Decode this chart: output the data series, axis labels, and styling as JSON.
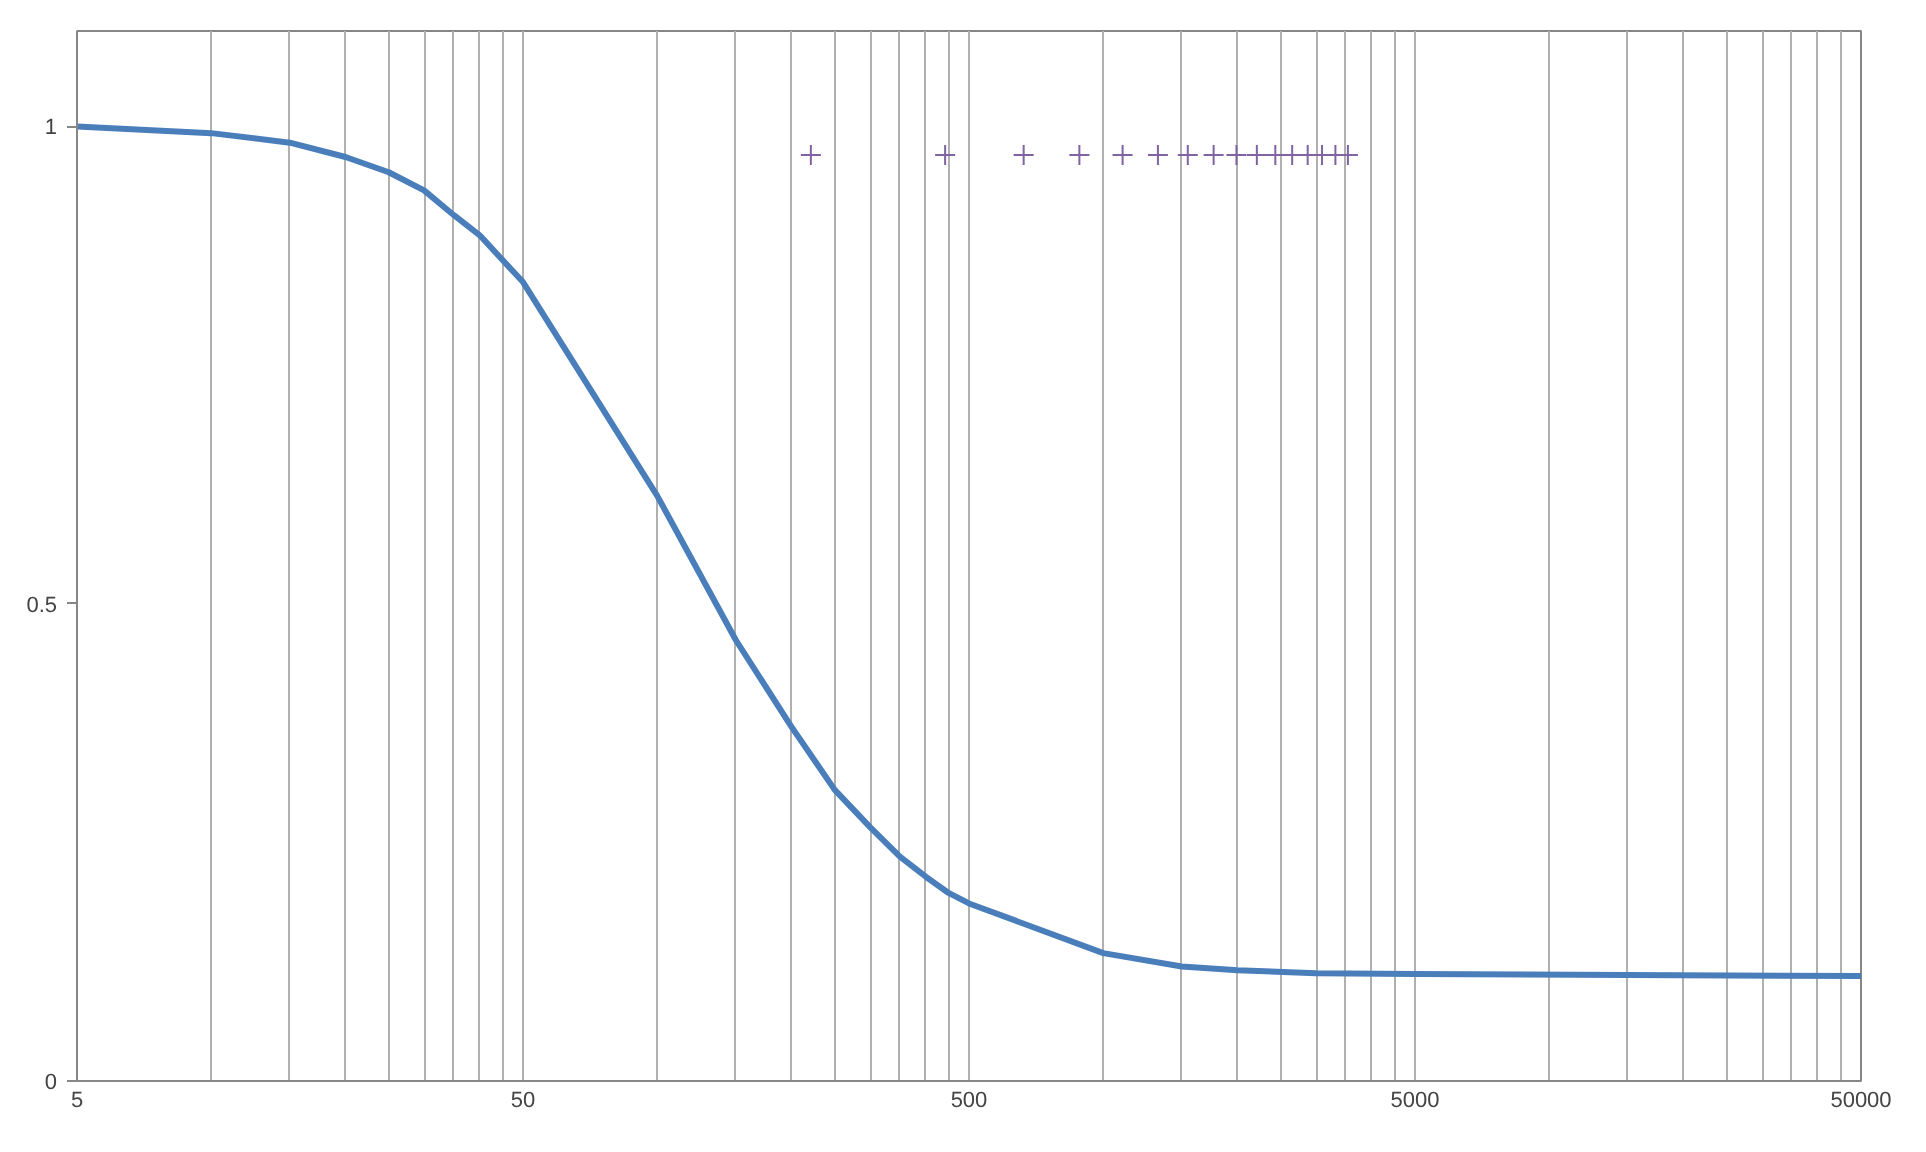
{
  "chart_data": {
    "type": "line",
    "log": "x",
    "grid": "x",
    "xlim": [
      5,
      50000
    ],
    "ylim": [
      0,
      1.1
    ],
    "xticks": [
      5,
      {
        "value": 10,
        "label": null
      },
      {
        "value": 15,
        "label": null
      },
      {
        "value": 20,
        "label": null
      },
      {
        "value": 25,
        "label": null
      },
      {
        "value": 30,
        "label": null
      },
      {
        "value": 35,
        "label": null
      },
      {
        "value": 40,
        "label": null
      },
      {
        "value": 45,
        "label": null
      },
      50,
      {
        "value": 100,
        "label": null
      },
      {
        "value": 150,
        "label": null
      },
      {
        "value": 200,
        "label": null
      },
      {
        "value": 250,
        "label": null
      },
      {
        "value": 300,
        "label": null
      },
      {
        "value": 350,
        "label": null
      },
      {
        "value": 400,
        "label": null
      },
      {
        "value": 450,
        "label": null
      },
      500,
      {
        "value": 1000,
        "label": null
      },
      {
        "value": 1500,
        "label": null
      },
      {
        "value": 2000,
        "label": null
      },
      {
        "value": 2500,
        "label": null
      },
      {
        "value": 3000,
        "label": null
      },
      {
        "value": 3500,
        "label": null
      },
      {
        "value": 4000,
        "label": null
      },
      {
        "value": 4500,
        "label": null
      },
      5000,
      {
        "value": 10000,
        "label": null
      },
      {
        "value": 15000,
        "label": null
      },
      {
        "value": 20000,
        "label": null
      },
      {
        "value": 25000,
        "label": null
      },
      {
        "value": 30000,
        "label": null
      },
      {
        "value": 35000,
        "label": null
      },
      {
        "value": 40000,
        "label": null
      },
      {
        "value": 45000,
        "label": null
      },
      50000
    ],
    "yticks": [
      0,
      0.5,
      1
    ],
    "series": [
      {
        "color": "#4a7ebb",
        "line_style": "solid",
        "marker": "none",
        "x": [
          5,
          10,
          15,
          20,
          25,
          30,
          35,
          40,
          45,
          50,
          100,
          150,
          200,
          250,
          300,
          350,
          400,
          450,
          500,
          1000,
          1500,
          2000,
          3000,
          5000,
          50000
        ],
        "values": [
          1.0,
          0.993,
          0.983,
          0.968,
          0.952,
          0.933,
          0.907,
          0.886,
          0.86,
          0.837,
          0.613,
          0.462,
          0.371,
          0.305,
          0.266,
          0.235,
          0.214,
          0.197,
          0.186,
          0.134,
          0.12,
          0.116,
          0.113,
          0.112,
          0.11
        ]
      },
      {
        "type": "scatter",
        "color": "#8064a2",
        "marker": "cross",
        "x": [
          221,
          442,
          663,
          884,
          1105,
          1326,
          1547,
          1768,
          1989,
          2210,
          2431,
          2652,
          2873,
          3094,
          3315,
          3536
        ],
        "values": [
          0.97,
          0.97,
          0.97,
          0.97,
          0.97,
          0.97,
          0.97,
          0.97,
          0.97,
          0.97,
          0.97,
          0.97,
          0.97,
          0.97,
          0.97,
          0.97
        ]
      }
    ]
  }
}
